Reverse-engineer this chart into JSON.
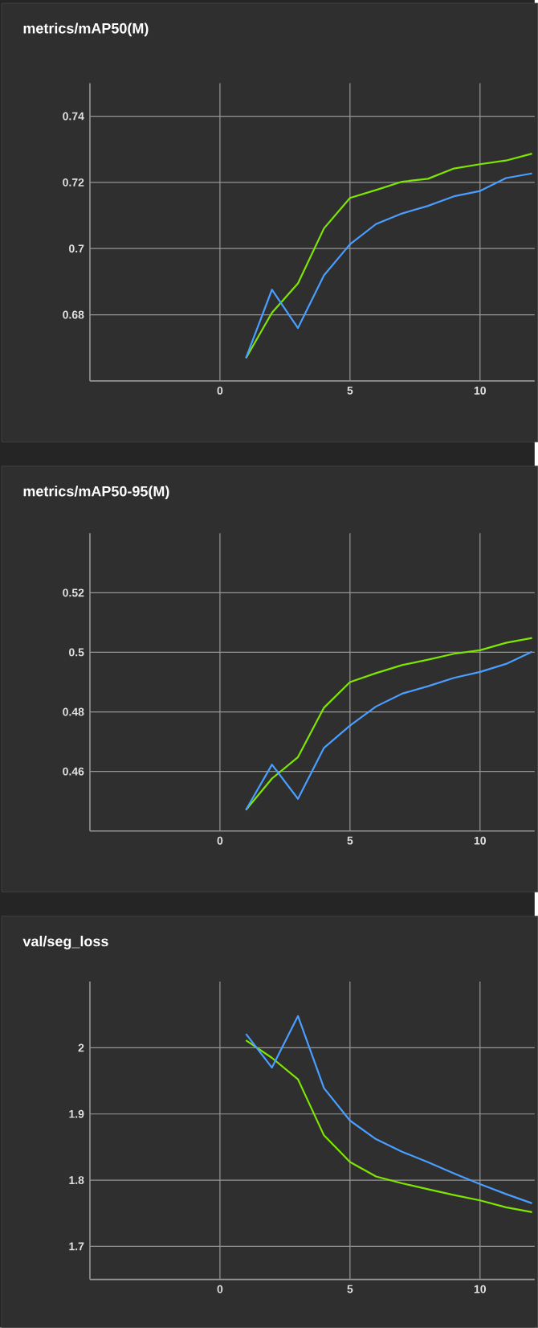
{
  "chart_data": [
    {
      "type": "line",
      "title": "metrics/mAP50(M)",
      "x": [
        1,
        2,
        3,
        4,
        5,
        6,
        7,
        8,
        9,
        10,
        11,
        12
      ],
      "xlim": [
        -5,
        12.1
      ],
      "xticks": [
        0,
        5,
        10
      ],
      "ylim": [
        0.66,
        0.75
      ],
      "yticks": [
        0.68,
        0.7,
        0.72,
        0.74
      ],
      "grid": true,
      "series": [
        {
          "color": "#7ee600",
          "values": [
            0.6669,
            0.6806,
            0.6895,
            0.7061,
            0.7153,
            0.7177,
            0.7202,
            0.7211,
            0.7242,
            0.7255,
            0.7266,
            0.7287
          ]
        },
        {
          "color": "#4a9eff",
          "values": [
            0.6669,
            0.6876,
            0.676,
            0.6919,
            0.7013,
            0.7074,
            0.7106,
            0.7129,
            0.7158,
            0.7174,
            0.7213,
            0.7227
          ]
        }
      ]
    },
    {
      "type": "line",
      "title": "metrics/mAP50-95(M)",
      "x": [
        1,
        2,
        3,
        4,
        5,
        6,
        7,
        8,
        9,
        10,
        11,
        12
      ],
      "xlim": [
        -5,
        12.1
      ],
      "xticks": [
        0,
        5,
        10
      ],
      "ylim": [
        0.44,
        0.54
      ],
      "yticks": [
        0.46,
        0.48,
        0.5,
        0.52
      ],
      "grid": true,
      "series": [
        {
          "color": "#7ee600",
          "values": [
            0.4471,
            0.4576,
            0.4648,
            0.4814,
            0.49,
            0.493,
            0.4957,
            0.4975,
            0.4995,
            0.5007,
            0.5032,
            0.5048
          ]
        },
        {
          "color": "#4a9eff",
          "values": [
            0.4471,
            0.4623,
            0.4508,
            0.4679,
            0.4754,
            0.4818,
            0.4861,
            0.4886,
            0.4914,
            0.4934,
            0.4961,
            0.5002
          ]
        }
      ]
    },
    {
      "type": "line",
      "title": "val/seg_loss",
      "x": [
        1,
        2,
        3,
        4,
        5,
        6,
        7,
        8,
        9,
        10,
        11,
        12
      ],
      "xlim": [
        -5,
        12.1
      ],
      "xticks": [
        0,
        5,
        10
      ],
      "ylim": [
        1.65,
        2.1
      ],
      "yticks": [
        1.7,
        1.8,
        1.9,
        2
      ],
      "grid": true,
      "series": [
        {
          "color": "#7ee600",
          "values": [
            2.0113,
            1.9847,
            1.9524,
            1.8677,
            1.8274,
            1.8056,
            1.7952,
            1.7863,
            1.7774,
            1.7694,
            1.7589,
            1.7516
          ]
        },
        {
          "color": "#4a9eff",
          "values": [
            2.021,
            1.97,
            2.048,
            1.939,
            1.89,
            1.862,
            1.843,
            1.827,
            1.81,
            1.794,
            1.779,
            1.765
          ]
        }
      ]
    }
  ]
}
